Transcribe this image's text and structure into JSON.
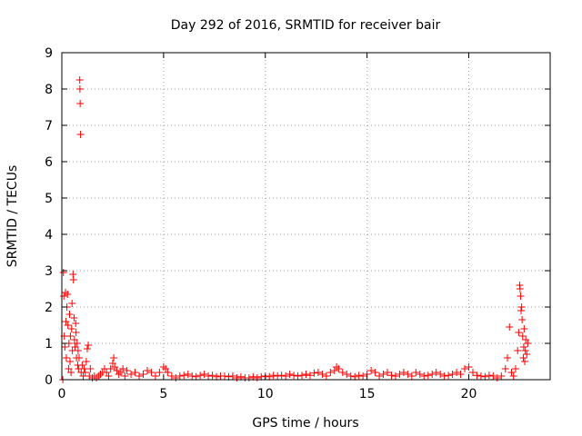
{
  "chart_data": {
    "type": "scatter",
    "title": "Day 292 of 2016, SRMTID for receiver bair",
    "xlabel": "GPS time / hours",
    "ylabel": "SRMTID / TECUs",
    "xlim": [
      0,
      24
    ],
    "ylim": [
      0,
      9
    ],
    "xticks": [
      0,
      5,
      10,
      15,
      20
    ],
    "yticks": [
      0,
      1,
      2,
      3,
      4,
      5,
      6,
      7,
      8,
      9
    ],
    "grid": true,
    "marker": "+",
    "color": "#ff0000",
    "series": [
      {
        "name": "SRMTID",
        "points": [
          [
            0.05,
            0.0
          ],
          [
            0.08,
            2.95
          ],
          [
            0.1,
            2.3
          ],
          [
            0.12,
            1.2
          ],
          [
            0.15,
            0.9
          ],
          [
            0.18,
            2.4
          ],
          [
            0.2,
            1.6
          ],
          [
            0.22,
            0.6
          ],
          [
            0.25,
            2.0
          ],
          [
            0.28,
            2.35
          ],
          [
            0.3,
            1.5
          ],
          [
            0.33,
            0.3
          ],
          [
            0.35,
            1.0
          ],
          [
            0.38,
            1.8
          ],
          [
            0.4,
            0.5
          ],
          [
            0.42,
            1.2
          ],
          [
            0.45,
            0.2
          ],
          [
            0.48,
            1.4
          ],
          [
            0.5,
            2.1
          ],
          [
            0.52,
            0.8
          ],
          [
            0.55,
            2.9
          ],
          [
            0.57,
            2.75
          ],
          [
            0.6,
            1.7
          ],
          [
            0.62,
            1.1
          ],
          [
            0.65,
            0.9
          ],
          [
            0.68,
            1.55
          ],
          [
            0.7,
            1.3
          ],
          [
            0.72,
            0.6
          ],
          [
            0.75,
            1.0
          ],
          [
            0.78,
            0.4
          ],
          [
            0.8,
            0.8
          ],
          [
            0.82,
            0.3
          ],
          [
            0.85,
            0.6
          ],
          [
            0.88,
            8.25
          ],
          [
            0.89,
            8.0
          ],
          [
            0.9,
            7.6
          ],
          [
            0.92,
            6.75
          ],
          [
            0.95,
            0.2
          ],
          [
            1.0,
            0.4
          ],
          [
            1.05,
            0.1
          ],
          [
            1.1,
            0.3
          ],
          [
            1.15,
            0.2
          ],
          [
            1.2,
            0.5
          ],
          [
            1.25,
            0.85
          ],
          [
            1.3,
            0.95
          ],
          [
            1.35,
            0.1
          ],
          [
            1.4,
            0.3
          ],
          [
            1.5,
            0.05
          ],
          [
            1.6,
            0.1
          ],
          [
            1.7,
            0.05
          ],
          [
            1.8,
            0.1
          ],
          [
            1.9,
            0.15
          ],
          [
            2.0,
            0.2
          ],
          [
            2.1,
            0.3
          ],
          [
            2.2,
            0.2
          ],
          [
            2.3,
            0.1
          ],
          [
            2.4,
            0.3
          ],
          [
            2.5,
            0.45
          ],
          [
            2.55,
            0.6
          ],
          [
            2.6,
            0.35
          ],
          [
            2.7,
            0.25
          ],
          [
            2.8,
            0.15
          ],
          [
            2.9,
            0.2
          ],
          [
            3.0,
            0.3
          ],
          [
            3.1,
            0.1
          ],
          [
            3.2,
            0.25
          ],
          [
            3.4,
            0.15
          ],
          [
            3.6,
            0.2
          ],
          [
            3.8,
            0.1
          ],
          [
            4.0,
            0.15
          ],
          [
            4.2,
            0.25
          ],
          [
            4.4,
            0.2
          ],
          [
            4.6,
            0.1
          ],
          [
            4.8,
            0.2
          ],
          [
            5.0,
            0.35
          ],
          [
            5.1,
            0.3
          ],
          [
            5.2,
            0.2
          ],
          [
            5.4,
            0.1
          ],
          [
            5.6,
            0.05
          ],
          [
            5.8,
            0.1
          ],
          [
            6.0,
            0.12
          ],
          [
            6.2,
            0.15
          ],
          [
            6.4,
            0.1
          ],
          [
            6.6,
            0.08
          ],
          [
            6.8,
            0.12
          ],
          [
            7.0,
            0.15
          ],
          [
            7.2,
            0.1
          ],
          [
            7.4,
            0.12
          ],
          [
            7.6,
            0.08
          ],
          [
            7.8,
            0.1
          ],
          [
            8.0,
            0.1
          ],
          [
            8.2,
            0.08
          ],
          [
            8.4,
            0.1
          ],
          [
            8.6,
            0.05
          ],
          [
            8.8,
            0.08
          ],
          [
            9.0,
            0.05
          ],
          [
            9.2,
            0.05
          ],
          [
            9.4,
            0.08
          ],
          [
            9.6,
            0.05
          ],
          [
            9.8,
            0.08
          ],
          [
            10.0,
            0.1
          ],
          [
            10.2,
            0.08
          ],
          [
            10.4,
            0.12
          ],
          [
            10.6,
            0.1
          ],
          [
            10.8,
            0.12
          ],
          [
            11.0,
            0.1
          ],
          [
            11.2,
            0.15
          ],
          [
            11.4,
            0.12
          ],
          [
            11.6,
            0.1
          ],
          [
            11.8,
            0.12
          ],
          [
            12.0,
            0.15
          ],
          [
            12.2,
            0.12
          ],
          [
            12.4,
            0.18
          ],
          [
            12.6,
            0.2
          ],
          [
            12.8,
            0.15
          ],
          [
            13.0,
            0.1
          ],
          [
            13.2,
            0.2
          ],
          [
            13.4,
            0.25
          ],
          [
            13.5,
            0.35
          ],
          [
            13.6,
            0.3
          ],
          [
            13.8,
            0.2
          ],
          [
            14.0,
            0.15
          ],
          [
            14.2,
            0.1
          ],
          [
            14.4,
            0.08
          ],
          [
            14.6,
            0.12
          ],
          [
            14.8,
            0.1
          ],
          [
            15.0,
            0.15
          ],
          [
            15.2,
            0.25
          ],
          [
            15.4,
            0.2
          ],
          [
            15.6,
            0.1
          ],
          [
            15.8,
            0.15
          ],
          [
            16.0,
            0.2
          ],
          [
            16.2,
            0.12
          ],
          [
            16.4,
            0.1
          ],
          [
            16.6,
            0.15
          ],
          [
            16.8,
            0.2
          ],
          [
            17.0,
            0.15
          ],
          [
            17.2,
            0.1
          ],
          [
            17.4,
            0.2
          ],
          [
            17.6,
            0.15
          ],
          [
            17.8,
            0.1
          ],
          [
            18.0,
            0.12
          ],
          [
            18.2,
            0.15
          ],
          [
            18.4,
            0.2
          ],
          [
            18.6,
            0.15
          ],
          [
            18.8,
            0.1
          ],
          [
            19.0,
            0.12
          ],
          [
            19.2,
            0.15
          ],
          [
            19.4,
            0.2
          ],
          [
            19.6,
            0.15
          ],
          [
            19.8,
            0.3
          ],
          [
            20.0,
            0.35
          ],
          [
            20.2,
            0.2
          ],
          [
            20.4,
            0.12
          ],
          [
            20.6,
            0.1
          ],
          [
            20.8,
            0.08
          ],
          [
            21.0,
            0.12
          ],
          [
            21.2,
            0.1
          ],
          [
            21.4,
            0.05
          ],
          [
            21.6,
            0.1
          ],
          [
            21.8,
            0.3
          ],
          [
            21.9,
            0.6
          ],
          [
            22.0,
            1.45
          ],
          [
            22.1,
            0.2
          ],
          [
            22.2,
            0.1
          ],
          [
            22.3,
            0.3
          ],
          [
            22.4,
            0.8
          ],
          [
            22.45,
            1.3
          ],
          [
            22.5,
            2.6
          ],
          [
            22.52,
            2.5
          ],
          [
            22.55,
            2.3
          ],
          [
            22.57,
            1.9
          ],
          [
            22.6,
            2.0
          ],
          [
            22.62,
            1.65
          ],
          [
            22.65,
            1.2
          ],
          [
            22.68,
            0.6
          ],
          [
            22.7,
            0.9
          ],
          [
            22.72,
            1.4
          ],
          [
            22.75,
            0.5
          ],
          [
            22.78,
            0.8
          ],
          [
            22.8,
            1.1
          ],
          [
            22.85,
            0.7
          ],
          [
            22.9,
            1.0
          ]
        ]
      }
    ]
  }
}
